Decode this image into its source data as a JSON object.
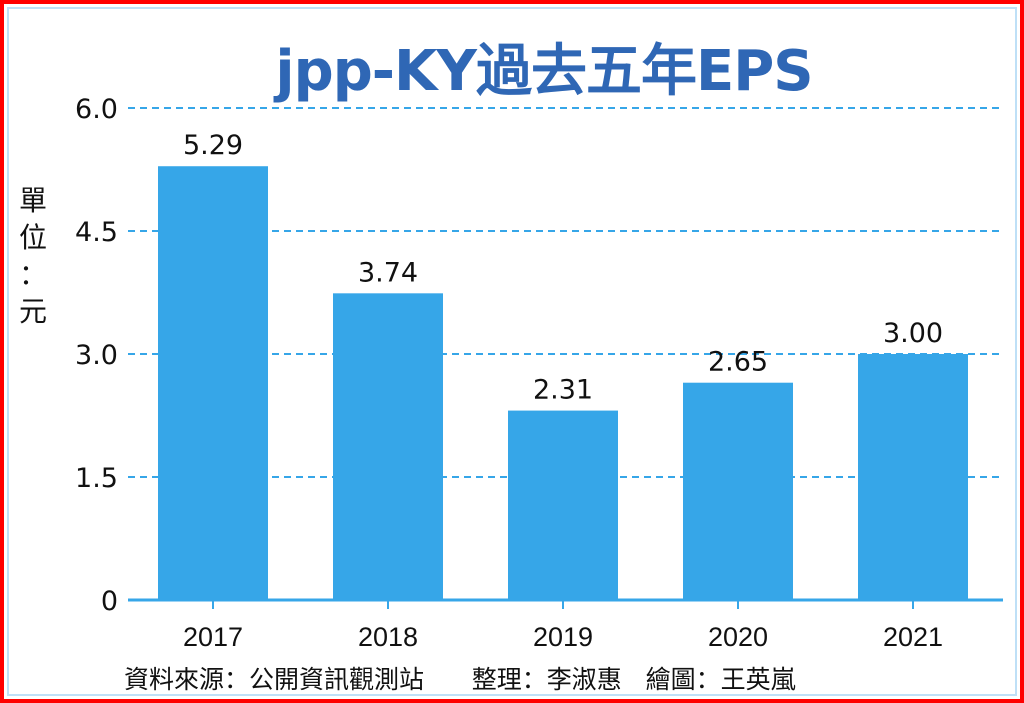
{
  "chart_data": {
    "type": "bar",
    "title": "jpp-KY過去五年EPS",
    "ylabel": "單位：元",
    "categories": [
      "2017",
      "2018",
      "2019",
      "2020",
      "2021"
    ],
    "values": [
      5.29,
      3.74,
      2.31,
      2.65,
      3.0
    ],
    "data_labels": [
      "5.29",
      "3.74",
      "2.31",
      "2.65",
      "3.00"
    ],
    "yticks": [
      "0",
      "1.5",
      "3.0",
      "4.5",
      "6.0"
    ],
    "ytick_values": [
      0,
      1.5,
      3.0,
      4.5,
      6.0
    ],
    "ylim": [
      0,
      6.0
    ],
    "grid": "dashed horizontal",
    "bar_color": "#36a6e8",
    "title_color": "#2f67b5",
    "grid_color": "#36a6e8"
  },
  "footer": {
    "source": "資料來源：公開資訊觀測站",
    "editor": "整理：李淑惠",
    "artist": "繪圖：王英嵐"
  }
}
